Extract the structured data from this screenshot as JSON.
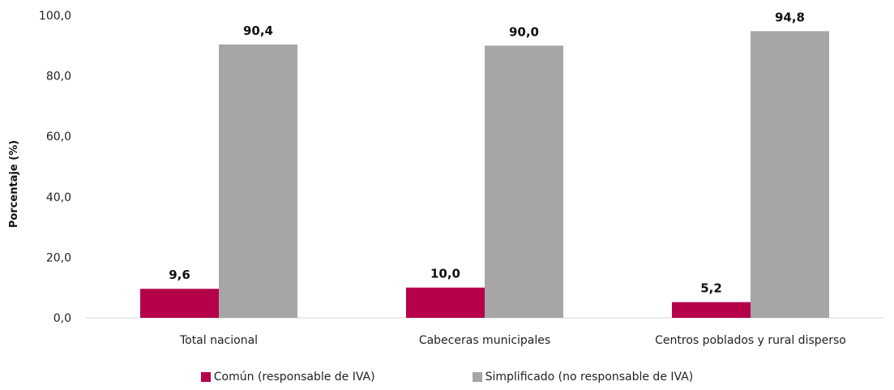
{
  "chart_data": {
    "type": "bar",
    "categories": [
      "Total nacional",
      "Cabeceras municipales",
      "Centros poblados y rural disperso"
    ],
    "series": [
      {
        "name": "Común (responsable de IVA)",
        "values": [
          9.6,
          10.0,
          5.2
        ],
        "color": "#b5004a",
        "labels": [
          "9,6",
          "10,0",
          "5,2"
        ]
      },
      {
        "name": "Simplificado (no responsable de IVA)",
        "values": [
          90.4,
          90.0,
          94.8
        ],
        "color": "#a6a6a6",
        "labels": [
          "90,4",
          "90,0",
          "94,8"
        ]
      }
    ],
    "ylabel": "Porcentaje (%)",
    "xlabel": "",
    "ylim": [
      0,
      100
    ],
    "yticks": [
      0,
      20,
      40,
      60,
      80,
      100
    ],
    "ytick_labels": [
      "0,0",
      "20,0",
      "40,0",
      "60,0",
      "80,0",
      "100,0"
    ],
    "grid": false,
    "legend_position": "bottom"
  }
}
